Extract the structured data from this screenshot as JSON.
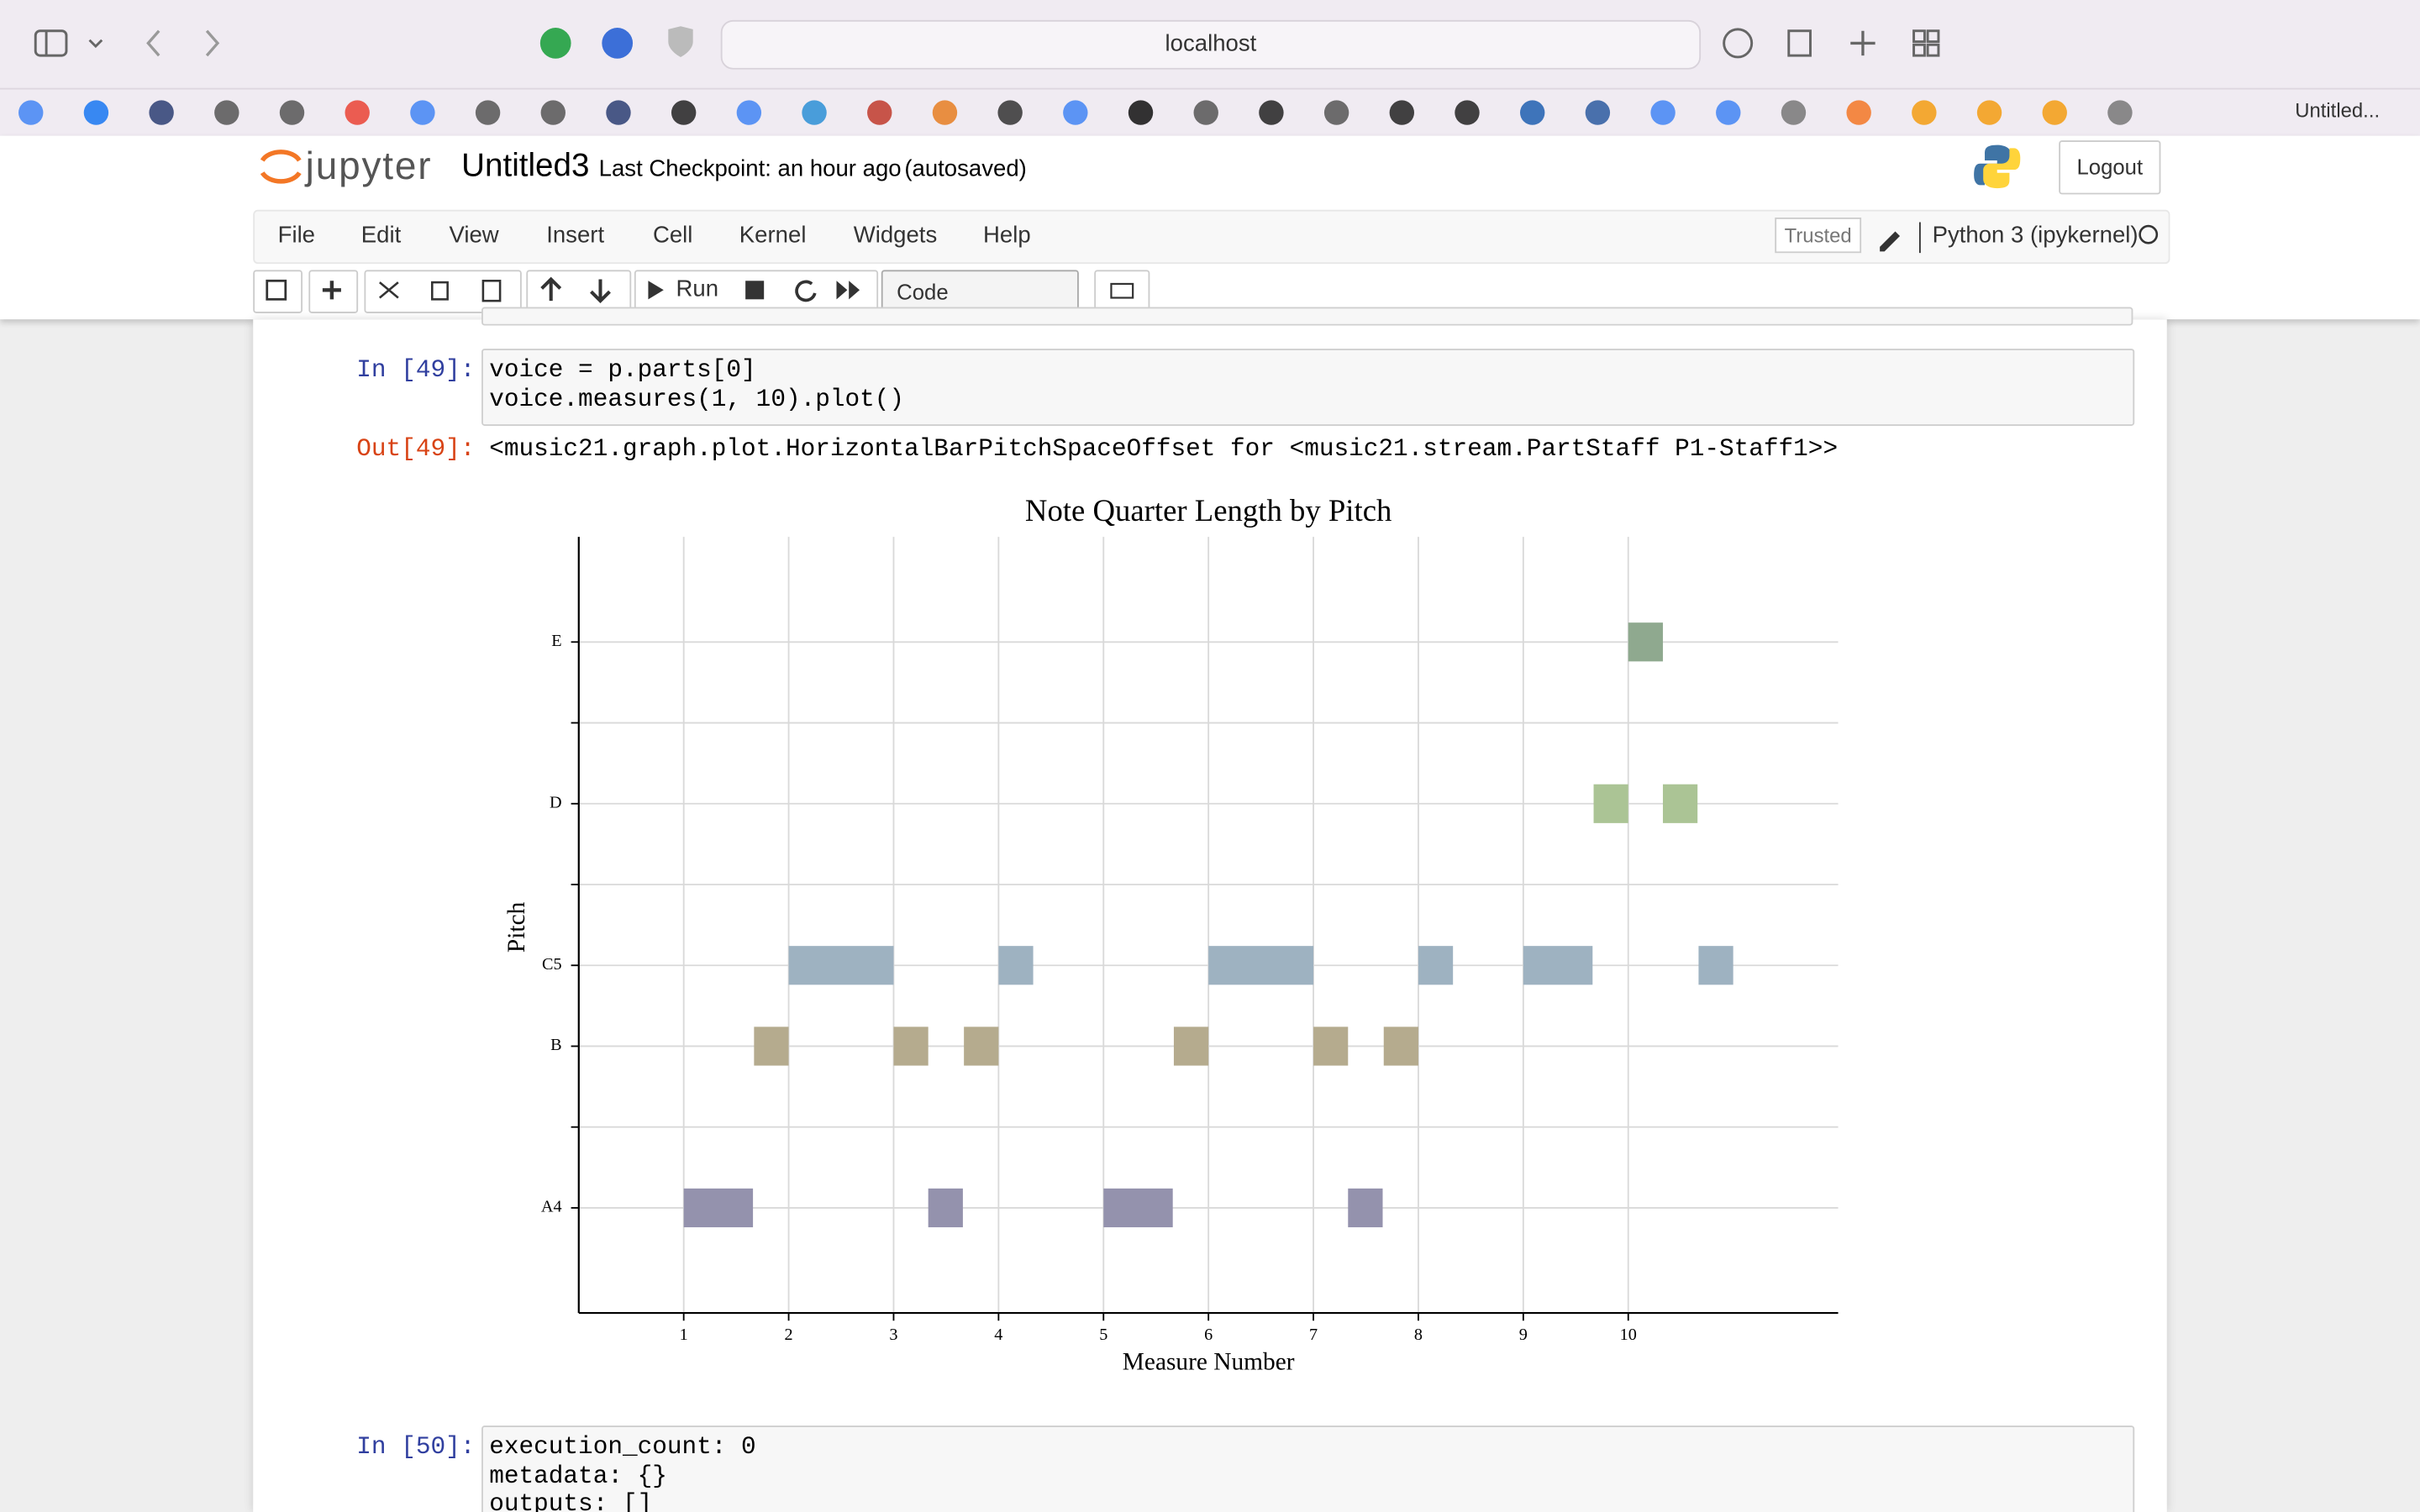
{
  "browser": {
    "url": "localhost",
    "tab": "Untitled..."
  },
  "header": {
    "logo": "jupyter",
    "notebook": "Untitled3",
    "checkpoint": "Last Checkpoint: an hour ago",
    "autosave": "(autosaved)",
    "logout": "Logout"
  },
  "menu": [
    "File",
    "Edit",
    "View",
    "Insert",
    "Cell",
    "Kernel",
    "Widgets",
    "Help"
  ],
  "toolbar": {
    "run": "Run",
    "cell_type": "Code",
    "trusted": "Trusted",
    "kernel": "Python 3 (ipykernel)"
  },
  "cells": [
    {
      "prompt": "In [49]:",
      "code": [
        "voice = p.parts[0]",
        "voice.measures(1, 10).plot()"
      ],
      "out_prompt": "Out[49]:",
      "output": "<music21.graph.plot.HorizontalBarPitchSpaceOffset for <music21.stream.PartStaff P1-Staff1>>"
    },
    {
      "prompt": "In [50]:",
      "code": [
        "execution_count: 0",
        "metadata: {}",
        "outputs: []"
      ]
    }
  ],
  "chart_data": {
    "type": "broken_barh",
    "title": "Note Quarter Length by Pitch",
    "x_label": "Measure Number",
    "y_label": "Pitch",
    "xlim": [
      0,
      12
    ],
    "xticks": [
      1,
      2,
      3,
      4,
      5,
      6,
      7,
      8,
      9,
      10
    ],
    "ylim": [
      7.7,
      17.3
    ],
    "yticks": [
      {
        "value": 9,
        "label": "A4"
      },
      {
        "value": 10,
        "label": null
      },
      {
        "value": 11,
        "label": "B"
      },
      {
        "value": 12,
        "label": "C5"
      },
      {
        "value": 13,
        "label": null
      },
      {
        "value": 14,
        "label": "D"
      },
      {
        "value": 15,
        "label": null
      },
      {
        "value": 16,
        "label": "E"
      }
    ],
    "grid": true,
    "series": [
      {
        "y": 9,
        "color": "#9492ad",
        "starts": [
          1.0,
          3.33,
          5.0,
          7.33
        ],
        "widths": [
          0.66,
          0.33,
          0.66,
          0.33
        ]
      },
      {
        "y": 11,
        "color": "#b5ab8e",
        "starts": [
          1.67,
          3.0,
          3.67,
          5.67,
          7.0,
          7.67
        ],
        "widths": [
          0.33,
          0.33,
          0.33,
          0.33,
          0.33,
          0.33
        ]
      },
      {
        "y": 12,
        "color": "#9eb2c1",
        "starts": [
          2.0,
          4.0,
          6.0,
          8.0,
          9.0,
          10.67
        ],
        "widths": [
          1.0,
          0.33,
          1.0,
          0.33,
          0.66,
          0.33
        ]
      },
      {
        "y": 14,
        "color": "#abc495",
        "starts": [
          9.67,
          10.33
        ],
        "widths": [
          0.33,
          0.33
        ]
      },
      {
        "y": 16,
        "color": "#8fa98f",
        "starts": [
          10.0
        ],
        "widths": [
          0.33
        ]
      }
    ]
  }
}
